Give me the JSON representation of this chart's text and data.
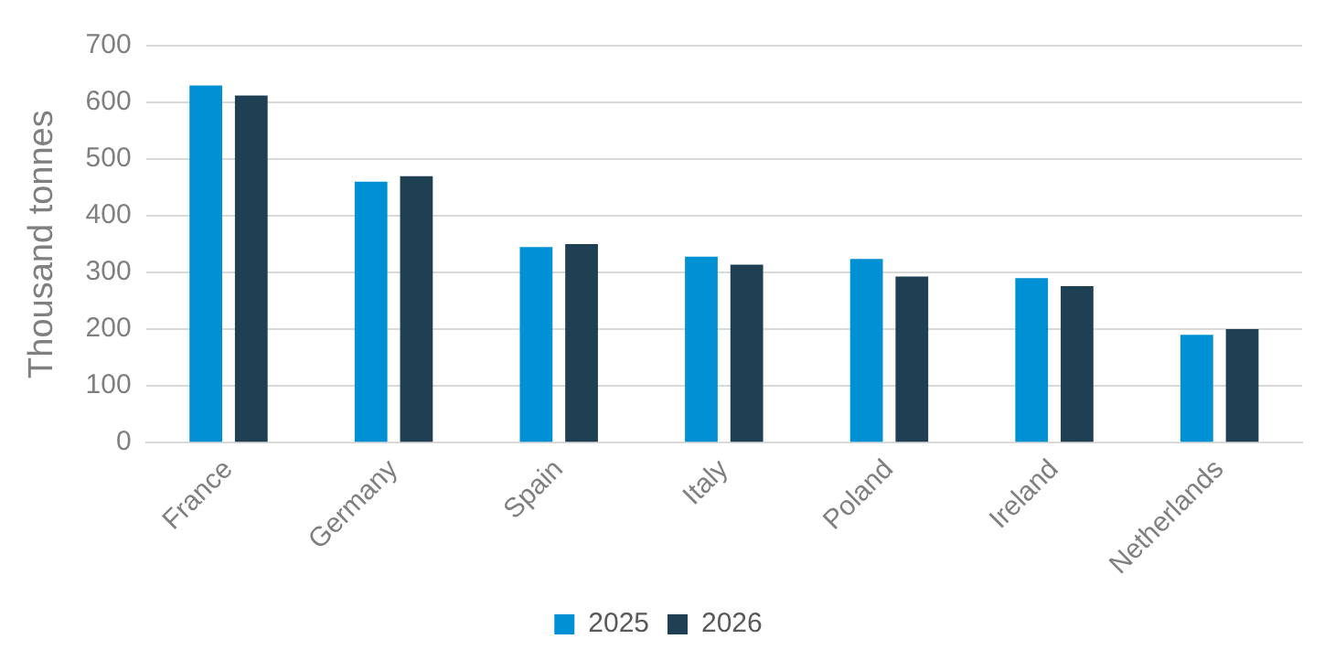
{
  "chart_data": {
    "type": "bar",
    "ylabel": "Thousand tonnes",
    "categories": [
      "France",
      "Germany",
      "Spain",
      "Italy",
      "Poland",
      "Ireland",
      "Netherlands"
    ],
    "series": [
      {
        "name": "2025",
        "color": "#0091d5",
        "values": [
          630,
          460,
          345,
          328,
          324,
          290,
          190
        ]
      },
      {
        "name": "2026",
        "color": "#1f3f52",
        "values": [
          612,
          470,
          350,
          314,
          293,
          276,
          200
        ]
      }
    ],
    "ylim": [
      0,
      700
    ],
    "yticks": [
      0,
      100,
      200,
      300,
      400,
      500,
      600,
      700
    ],
    "grid": "y",
    "legend": "bottom"
  }
}
